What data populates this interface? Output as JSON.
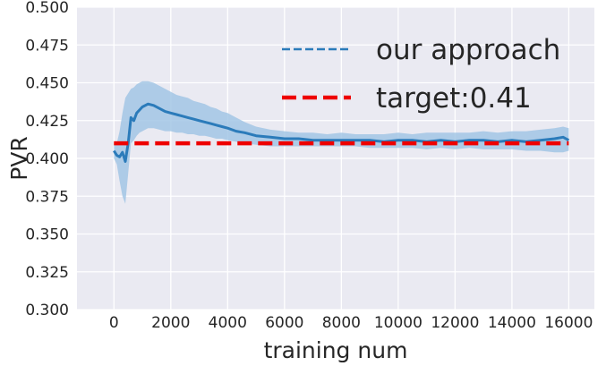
{
  "chart_data": {
    "type": "line",
    "title": "",
    "xlabel": "training num",
    "ylabel": "PVR",
    "xlim": [
      -1300,
      16900
    ],
    "ylim": [
      0.3,
      0.5
    ],
    "x_ticks": [
      0,
      2000,
      4000,
      6000,
      8000,
      10000,
      12000,
      14000,
      16000
    ],
    "x_tick_labels": [
      "0",
      "2000",
      "4000",
      "6000",
      "8000",
      "10000",
      "12000",
      "14000",
      "16000"
    ],
    "y_ticks": [
      0.3,
      0.325,
      0.35,
      0.375,
      0.4,
      0.425,
      0.45,
      0.475,
      0.5
    ],
    "y_tick_labels": [
      "0.300",
      "0.325",
      "0.350",
      "0.375",
      "0.400",
      "0.425",
      "0.450",
      "0.475",
      "0.500"
    ],
    "grid": true,
    "legend_position": "upper-right",
    "colors": {
      "background": "#eaeaf2",
      "grid": "#ffffff",
      "series_line": "#2b7bba",
      "band": "#9dc3e4",
      "target": "#ee0000"
    },
    "series": [
      {
        "name": "our approach",
        "style": "solid-with-confidence-band",
        "x": [
          0,
          100,
          200,
          300,
          400,
          500,
          600,
          700,
          800,
          900,
          1000,
          1200,
          1400,
          1600,
          1800,
          2000,
          2200,
          2400,
          2600,
          2800,
          3000,
          3200,
          3400,
          3600,
          3800,
          4000,
          4300,
          4600,
          5000,
          5500,
          6000,
          6500,
          7000,
          7500,
          8000,
          8500,
          9000,
          9500,
          10000,
          10500,
          11000,
          11500,
          12000,
          12500,
          13000,
          13500,
          14000,
          14500,
          15000,
          15500,
          15800,
          16000
        ],
        "y": [
          0.405,
          0.402,
          0.401,
          0.404,
          0.398,
          0.41,
          0.427,
          0.425,
          0.43,
          0.432,
          0.434,
          0.436,
          0.435,
          0.433,
          0.431,
          0.43,
          0.429,
          0.428,
          0.427,
          0.426,
          0.425,
          0.424,
          0.423,
          0.422,
          0.421,
          0.42,
          0.418,
          0.417,
          0.415,
          0.414,
          0.413,
          0.413,
          0.412,
          0.412,
          0.412,
          0.412,
          0.412,
          0.411,
          0.412,
          0.412,
          0.411,
          0.412,
          0.411,
          0.412,
          0.412,
          0.411,
          0.412,
          0.411,
          0.412,
          0.413,
          0.414,
          0.412
        ],
        "lower": [
          0.4,
          0.396,
          0.385,
          0.375,
          0.37,
          0.39,
          0.41,
          0.412,
          0.415,
          0.417,
          0.418,
          0.42,
          0.42,
          0.419,
          0.418,
          0.418,
          0.417,
          0.417,
          0.416,
          0.416,
          0.415,
          0.415,
          0.414,
          0.413,
          0.413,
          0.412,
          0.411,
          0.41,
          0.409,
          0.408,
          0.408,
          0.408,
          0.408,
          0.408,
          0.408,
          0.408,
          0.407,
          0.407,
          0.407,
          0.407,
          0.406,
          0.407,
          0.406,
          0.407,
          0.406,
          0.406,
          0.406,
          0.405,
          0.405,
          0.404,
          0.404,
          0.405
        ],
        "upper": [
          0.41,
          0.41,
          0.418,
          0.43,
          0.44,
          0.443,
          0.446,
          0.447,
          0.449,
          0.45,
          0.451,
          0.451,
          0.45,
          0.448,
          0.446,
          0.444,
          0.442,
          0.441,
          0.44,
          0.438,
          0.437,
          0.436,
          0.434,
          0.433,
          0.431,
          0.43,
          0.427,
          0.424,
          0.421,
          0.419,
          0.418,
          0.417,
          0.417,
          0.416,
          0.417,
          0.416,
          0.416,
          0.416,
          0.417,
          0.416,
          0.417,
          0.417,
          0.417,
          0.417,
          0.418,
          0.417,
          0.418,
          0.418,
          0.419,
          0.42,
          0.421,
          0.42
        ]
      },
      {
        "name": "target:0.41",
        "style": "dashed",
        "x": [
          0,
          16000
        ],
        "y": [
          0.41,
          0.41
        ]
      }
    ]
  }
}
